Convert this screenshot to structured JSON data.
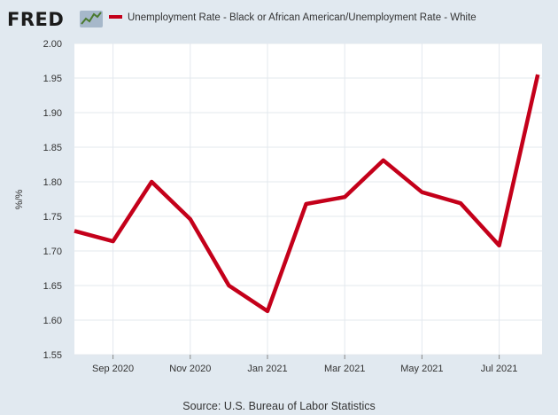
{
  "logo": {
    "text": "FRED",
    "icon": "line-chart-icon",
    "colors": {
      "text": "#1b1b1b",
      "icon_bg": "#a6b8ca",
      "icon_line": "#4a7a2e"
    }
  },
  "chart_data": {
    "type": "line",
    "title": "",
    "xlabel": "",
    "ylabel": "%/%",
    "source": "Source: U.S. Bureau of Labor Statistics",
    "x": [
      "2020-08",
      "2020-09",
      "2020-10",
      "2020-11",
      "2020-12",
      "2021-01",
      "2021-02",
      "2021-03",
      "2021-04",
      "2021-05",
      "2021-06",
      "2021-07",
      "2021-08"
    ],
    "series": [
      {
        "name": "Unemployment Rate - Black or African American/Unemployment Rate - White",
        "color": "#c4001a",
        "values": [
          1.729,
          1.714,
          1.8,
          1.746,
          1.65,
          1.613,
          1.768,
          1.778,
          1.831,
          1.785,
          1.769,
          1.708,
          1.955
        ]
      }
    ],
    "ylim": [
      1.55,
      2.0
    ],
    "yticks": [
      "1.55",
      "1.60",
      "1.65",
      "1.70",
      "1.75",
      "1.80",
      "1.85",
      "1.90",
      "1.95",
      "2.00"
    ],
    "xticks": [
      {
        "at": "2020-09",
        "label": "Sep 2020"
      },
      {
        "at": "2020-11",
        "label": "Nov 2020"
      },
      {
        "at": "2021-01",
        "label": "Jan 2021"
      },
      {
        "at": "2021-03",
        "label": "Mar 2021"
      },
      {
        "at": "2021-05",
        "label": "May 2021"
      },
      {
        "at": "2021-07",
        "label": "Jul 2021"
      }
    ],
    "grid": true,
    "legend_position": "top",
    "colors": {
      "background": "#e1e9f0",
      "plot_background": "#ffffff",
      "grid": "#e3e8ee"
    }
  }
}
